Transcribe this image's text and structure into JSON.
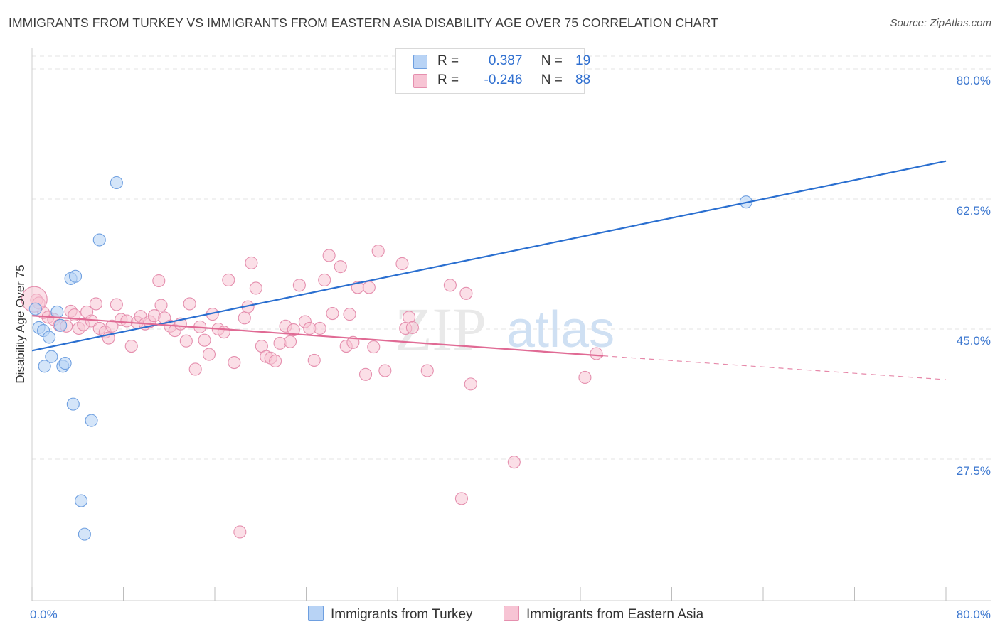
{
  "title": "IMMIGRANTS FROM TURKEY VS IMMIGRANTS FROM EASTERN ASIA DISABILITY AGE OVER 75 CORRELATION CHART",
  "source": "Source: ZipAtlas.com",
  "watermark": {
    "zip": "ZIP",
    "atlas": "atlas"
  },
  "legend": {
    "r_label": "R =",
    "n_label": "N =",
    "rows": [
      {
        "r": "0.387",
        "n": "19"
      },
      {
        "r": "-0.246",
        "n": "88"
      }
    ]
  },
  "colors": {
    "turkey_fill": "#b8d3f5",
    "turkey_stroke": "#6e9fe0",
    "turkey_line": "#2a6fd0",
    "asia_fill": "#f7c4d4",
    "asia_stroke": "#e58fae",
    "asia_line": "#e06a94",
    "axis_text": "#3d78d0",
    "grid": "#e3e3e3"
  },
  "chart_data": {
    "type": "scatter",
    "title": "IMMIGRANTS FROM TURKEY VS IMMIGRANTS FROM EASTERN ASIA DISABILITY AGE OVER 75 CORRELATION CHART",
    "xlabel": "",
    "ylabel": "Disability Age Over 75",
    "xlim": [
      0,
      80
    ],
    "ylim": [
      12.5,
      82.5
    ],
    "x_tick_labels": [
      "0.0%",
      "80.0%"
    ],
    "y_ticks": [
      27.5,
      45.0,
      62.5,
      80.0
    ],
    "y_tick_labels": [
      "27.5%",
      "45.0%",
      "62.5%",
      "80.0%"
    ],
    "grid": true,
    "legend_position": "bottom-center",
    "series": [
      {
        "name": "Immigrants from Turkey",
        "trend": {
          "x0": 0,
          "y0": 42.1,
          "x1": 80,
          "y1": 67.6
        },
        "points": [
          [
            0.3,
            47.7
          ],
          [
            0.6,
            45.2
          ],
          [
            1.0,
            44.8
          ],
          [
            1.1,
            40.0
          ],
          [
            1.5,
            43.9
          ],
          [
            1.7,
            41.3
          ],
          [
            2.2,
            47.3
          ],
          [
            2.5,
            45.5
          ],
          [
            2.7,
            40.0
          ],
          [
            2.9,
            40.4
          ],
          [
            3.6,
            34.9
          ],
          [
            3.4,
            51.8
          ],
          [
            3.8,
            52.1
          ],
          [
            4.3,
            21.9
          ],
          [
            4.6,
            17.4
          ],
          [
            5.2,
            32.7
          ],
          [
            5.9,
            57.0
          ],
          [
            7.4,
            64.7
          ],
          [
            62.5,
            62.1
          ]
        ]
      },
      {
        "name": "Immigrants from Eastern Asia",
        "trend": {
          "x0": 0,
          "y0": 46.8,
          "x1": 50,
          "y1": 41.4
        },
        "trend_ext": {
          "x0": 50,
          "y0": 41.4,
          "x1": 80,
          "y1": 38.2
        },
        "points": [
          [
            0.4,
            48.9
          ],
          [
            0.6,
            48.5
          ],
          [
            1.0,
            47.2
          ],
          [
            1.4,
            46.6
          ],
          [
            1.9,
            46.3
          ],
          [
            2.4,
            45.5
          ],
          [
            3.0,
            45.4
          ],
          [
            3.4,
            47.4
          ],
          [
            3.7,
            46.9
          ],
          [
            4.1,
            45.1
          ],
          [
            4.5,
            45.6
          ],
          [
            4.8,
            47.3
          ],
          [
            5.2,
            46.1
          ],
          [
            5.6,
            48.4
          ],
          [
            5.9,
            45.1
          ],
          [
            6.4,
            44.6
          ],
          [
            6.7,
            43.8
          ],
          [
            7.0,
            45.4
          ],
          [
            7.4,
            48.3
          ],
          [
            7.8,
            46.3
          ],
          [
            8.3,
            46.1
          ],
          [
            8.7,
            42.7
          ],
          [
            9.2,
            45.9
          ],
          [
            9.5,
            46.7
          ],
          [
            9.9,
            45.7
          ],
          [
            10.3,
            46.0
          ],
          [
            10.7,
            46.8
          ],
          [
            11.1,
            51.5
          ],
          [
            11.3,
            48.2
          ],
          [
            11.6,
            46.5
          ],
          [
            12.1,
            45.4
          ],
          [
            12.5,
            44.8
          ],
          [
            13.0,
            45.7
          ],
          [
            13.5,
            43.4
          ],
          [
            13.8,
            48.4
          ],
          [
            14.3,
            39.6
          ],
          [
            14.7,
            45.3
          ],
          [
            15.1,
            43.5
          ],
          [
            15.5,
            41.6
          ],
          [
            15.8,
            47.0
          ],
          [
            16.3,
            45.0
          ],
          [
            16.8,
            44.6
          ],
          [
            17.2,
            51.6
          ],
          [
            17.7,
            40.5
          ],
          [
            18.2,
            17.7
          ],
          [
            18.6,
            46.5
          ],
          [
            18.9,
            48.0
          ],
          [
            19.2,
            53.9
          ],
          [
            19.6,
            50.5
          ],
          [
            20.1,
            42.7
          ],
          [
            20.5,
            41.3
          ],
          [
            20.9,
            41.1
          ],
          [
            21.3,
            40.7
          ],
          [
            21.7,
            43.1
          ],
          [
            22.2,
            45.4
          ],
          [
            22.6,
            43.3
          ],
          [
            22.9,
            44.9
          ],
          [
            23.4,
            50.9
          ],
          [
            23.9,
            46.0
          ],
          [
            24.3,
            45.1
          ],
          [
            24.7,
            40.8
          ],
          [
            25.2,
            45.1
          ],
          [
            25.6,
            51.6
          ],
          [
            26.0,
            54.9
          ],
          [
            26.3,
            47.1
          ],
          [
            27.0,
            53.4
          ],
          [
            27.5,
            42.7
          ],
          [
            27.8,
            47.0
          ],
          [
            28.1,
            43.2
          ],
          [
            28.5,
            50.6
          ],
          [
            29.2,
            38.9
          ],
          [
            29.5,
            50.6
          ],
          [
            29.9,
            42.6
          ],
          [
            30.3,
            55.5
          ],
          [
            30.9,
            39.4
          ],
          [
            32.4,
            53.8
          ],
          [
            32.7,
            45.1
          ],
          [
            33.0,
            46.6
          ],
          [
            33.3,
            45.2
          ],
          [
            34.6,
            39.4
          ],
          [
            36.6,
            50.9
          ],
          [
            37.6,
            22.2
          ],
          [
            38.0,
            49.8
          ],
          [
            38.4,
            37.6
          ],
          [
            42.2,
            27.1
          ],
          [
            48.4,
            38.5
          ],
          [
            49.4,
            41.7
          ],
          [
            0.2,
            49.0
          ]
        ]
      }
    ]
  }
}
